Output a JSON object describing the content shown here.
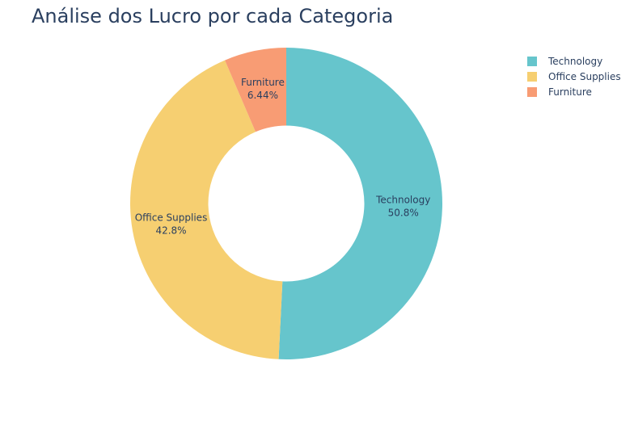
{
  "chart_data": {
    "type": "pie",
    "title": "Análise dos Lucro por cada Categoria",
    "hole": 0.5,
    "legend_position": "top-right",
    "slices": [
      {
        "label": "Technology",
        "value": 50.8,
        "percent_text": "50.8%",
        "color": "#66c5cc"
      },
      {
        "label": "Office Supplies",
        "value": 42.8,
        "percent_text": "42.8%",
        "color": "#f6cf71"
      },
      {
        "label": "Furniture",
        "value": 6.44,
        "percent_text": "6.44%",
        "color": "#f89c74"
      }
    ]
  }
}
